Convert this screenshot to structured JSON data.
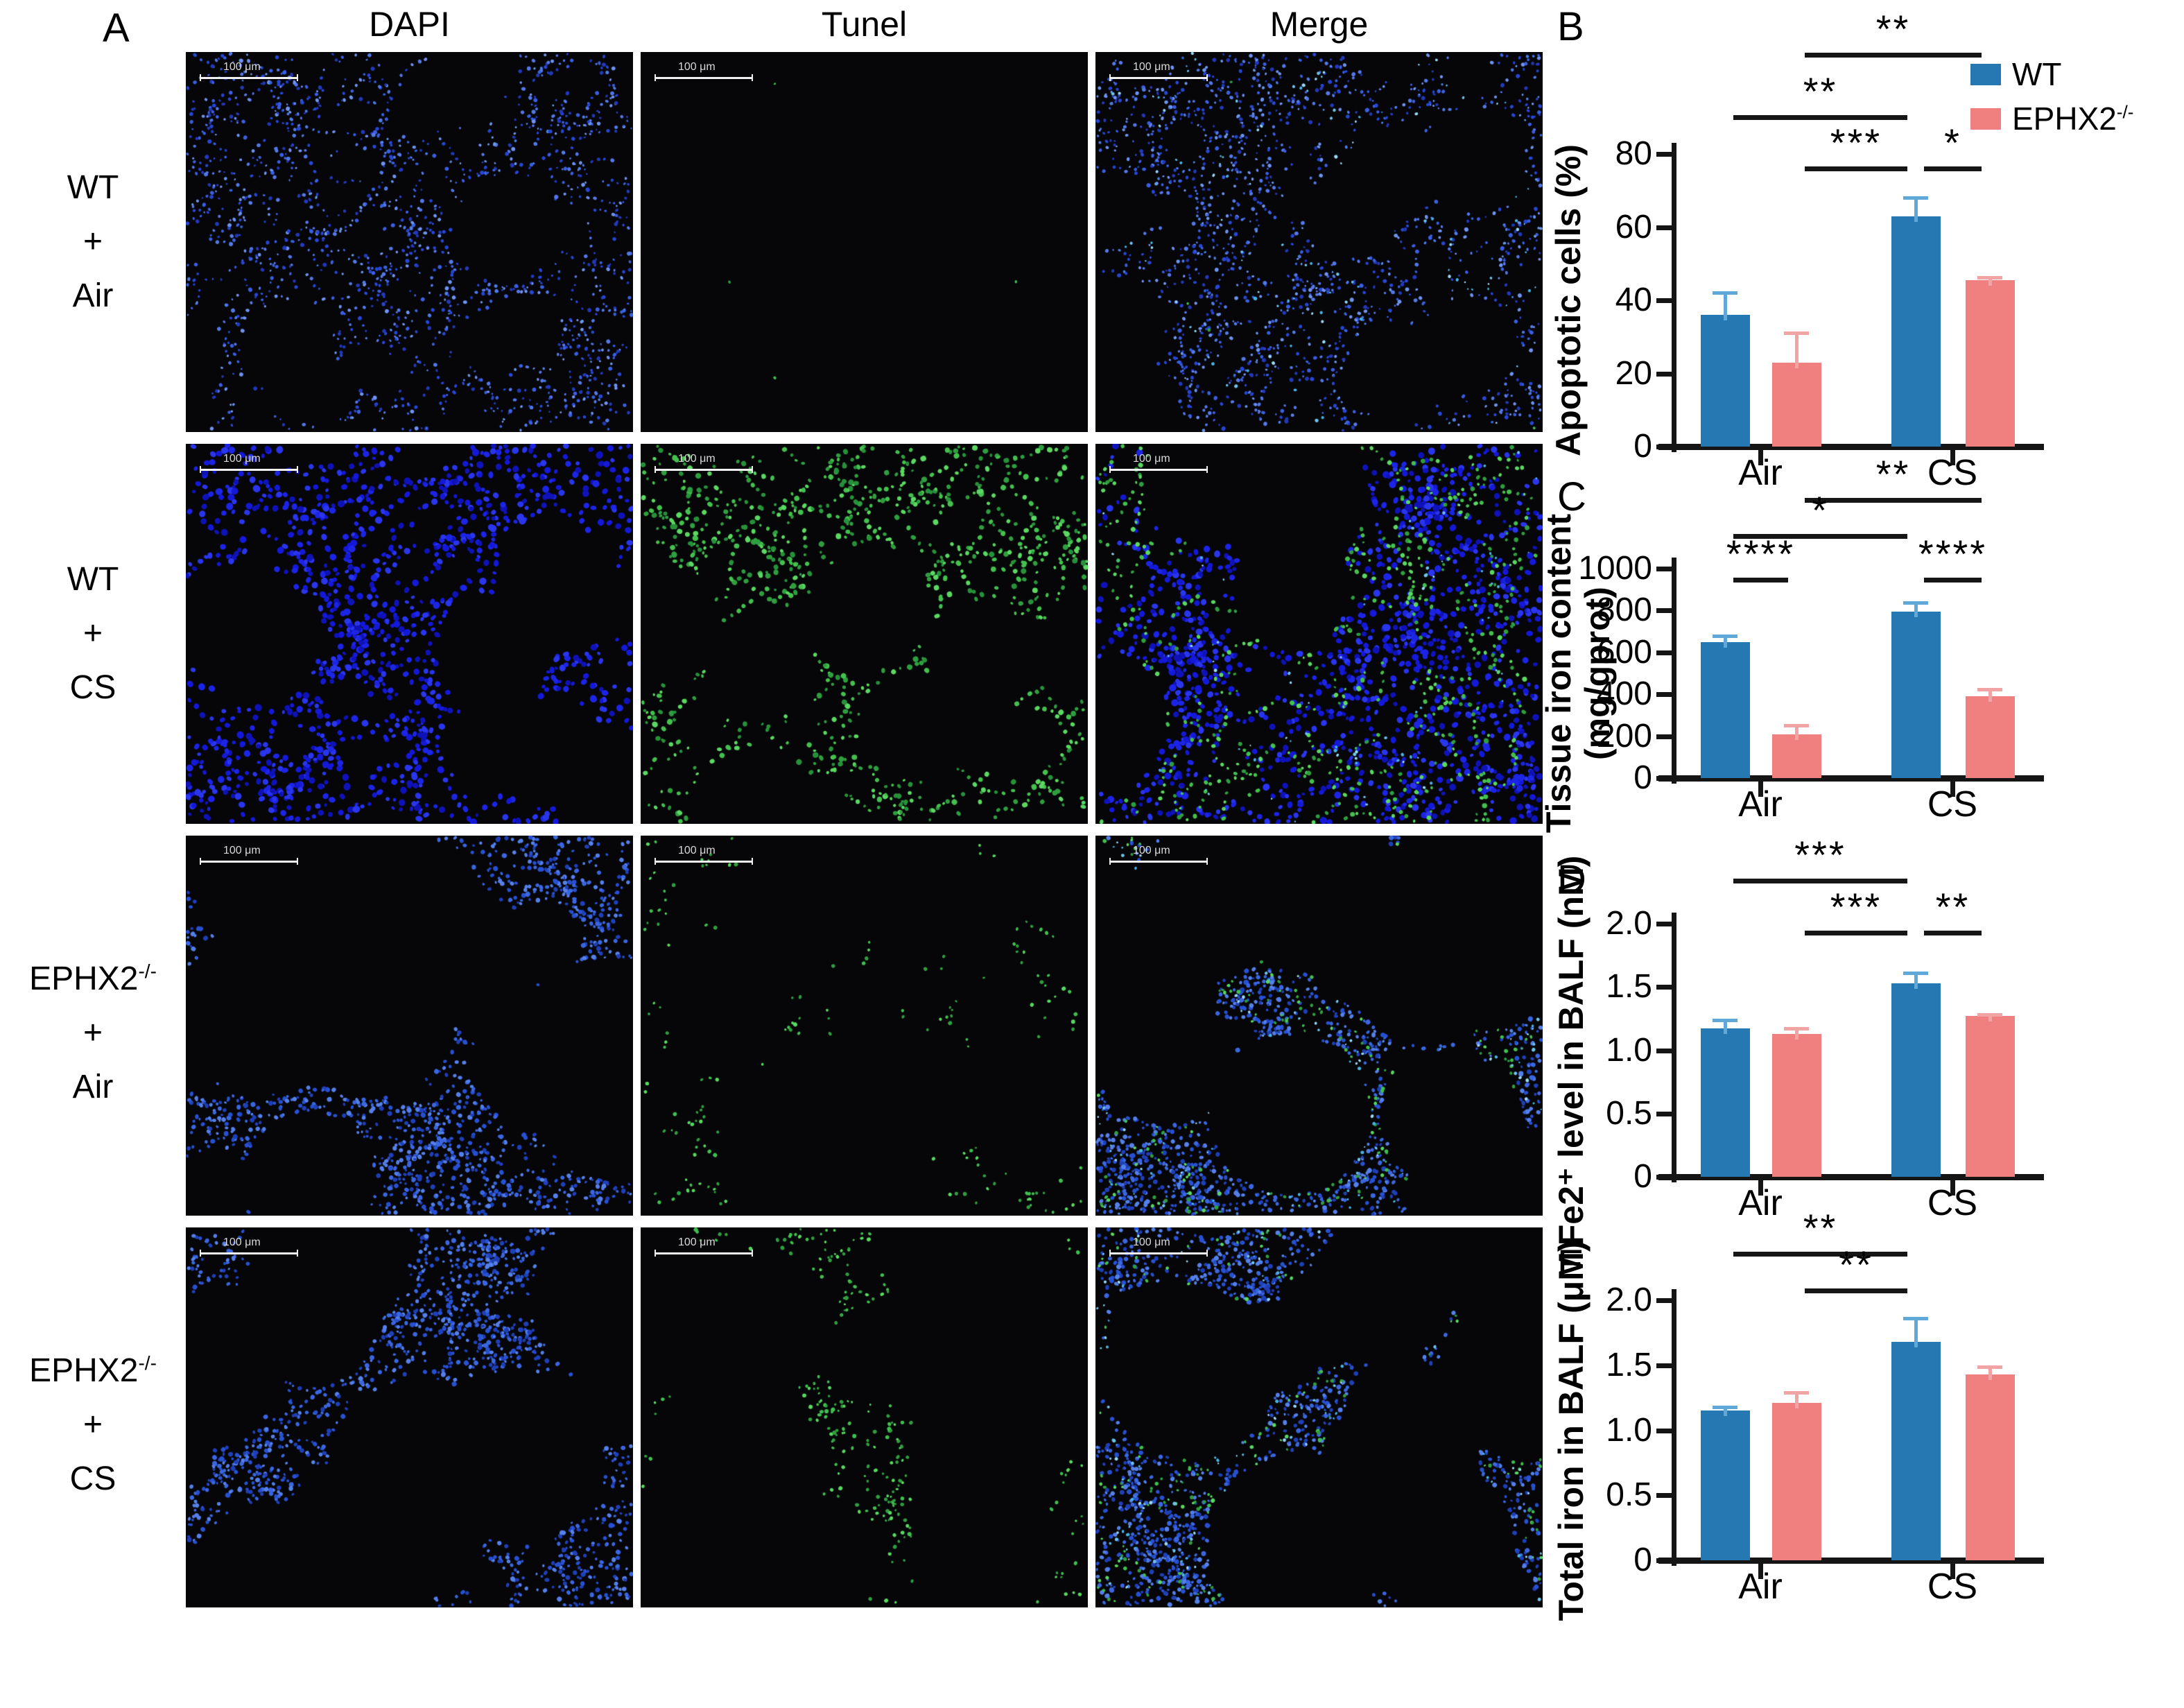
{
  "panel_a": {
    "label": "A",
    "column_headers": [
      "DAPI",
      "Tunel",
      "Merge"
    ],
    "row_labels": [
      {
        "genotype": "WT",
        "genotype_sup": "",
        "plus": "+",
        "condition": "Air"
      },
      {
        "genotype": "WT",
        "genotype_sup": "",
        "plus": "+",
        "condition": "CS"
      },
      {
        "genotype": "EPHX2",
        "genotype_sup": "-/-",
        "plus": "+",
        "condition": "Air"
      },
      {
        "genotype": "EPHX2",
        "genotype_sup": "-/-",
        "plus": "+",
        "condition": "CS"
      }
    ],
    "scale_bar_label": "100 μm",
    "micrographs": [
      {
        "row": 0,
        "col": 0,
        "stain": "DAPI",
        "group": "wt-air",
        "blue": "dense-fine",
        "green": "none"
      },
      {
        "row": 0,
        "col": 1,
        "stain": "Tunel",
        "group": "wt-air",
        "blue": "none",
        "green": "trace"
      },
      {
        "row": 0,
        "col": 2,
        "stain": "Merge",
        "group": "wt-air",
        "blue": "dense-fine",
        "green": "trace"
      },
      {
        "row": 1,
        "col": 0,
        "stain": "DAPI",
        "group": "wt-cs",
        "blue": "dense-bold",
        "green": "none"
      },
      {
        "row": 1,
        "col": 1,
        "stain": "Tunel",
        "group": "wt-cs",
        "blue": "none",
        "green": "dense"
      },
      {
        "row": 1,
        "col": 2,
        "stain": "Merge",
        "group": "wt-cs",
        "blue": "dense-bold",
        "green": "medium"
      },
      {
        "row": 2,
        "col": 0,
        "stain": "DAPI",
        "group": "ephx2-air",
        "blue": "medium",
        "green": "none"
      },
      {
        "row": 2,
        "col": 1,
        "stain": "Tunel",
        "group": "ephx2-air",
        "blue": "none",
        "green": "sparse"
      },
      {
        "row": 2,
        "col": 2,
        "stain": "Merge",
        "group": "ephx2-air",
        "blue": "medium",
        "green": "sparse"
      },
      {
        "row": 3,
        "col": 0,
        "stain": "DAPI",
        "group": "ephx2-cs",
        "blue": "medium",
        "green": "none"
      },
      {
        "row": 3,
        "col": 1,
        "stain": "Tunel",
        "group": "ephx2-cs",
        "blue": "none",
        "green": "sparse-medium"
      },
      {
        "row": 3,
        "col": 2,
        "stain": "Merge",
        "group": "ephx2-cs",
        "blue": "medium",
        "green": "sparse"
      }
    ]
  },
  "legend": {
    "items": [
      {
        "label": "WT",
        "sup": "",
        "color_key": "wt_bar"
      },
      {
        "label": "EPHX2",
        "sup": "-/-",
        "color_key": "ephx2_bar"
      }
    ]
  },
  "chart_data": [
    {
      "panel": "B",
      "type": "bar",
      "ylabel_lines": [
        "Apoptotic cells (%)"
      ],
      "xlabel": "",
      "categories": [
        "Air",
        "CS"
      ],
      "ytick_labels": [
        "0",
        "20",
        "40",
        "60",
        "80"
      ],
      "ytick_values": [
        0,
        20,
        40,
        60,
        80
      ],
      "ylim": [
        0,
        80
      ],
      "legend_position": "top-right",
      "series": [
        {
          "name": "WT",
          "color_key": "wt_bar",
          "error_color_key": "wt_error",
          "values": [
            36,
            63
          ],
          "errors": [
            6,
            5
          ]
        },
        {
          "name": "EPHX2-/-",
          "color_key": "ephx2_bar",
          "error_color_key": "ephx2_error",
          "values": [
            23,
            45.5
          ],
          "errors": [
            8,
            0.8
          ]
        }
      ],
      "significance": [
        {
          "bars": [
            1,
            3
          ],
          "label": "**",
          "row": 2
        },
        {
          "bars": [
            0,
            2
          ],
          "label": "**",
          "row": 1
        },
        {
          "bars": [
            1,
            2
          ],
          "label": "***",
          "row": 0
        },
        {
          "bars": [
            2,
            3
          ],
          "label": "*",
          "row": 0
        }
      ]
    },
    {
      "panel": "C",
      "type": "bar",
      "ylabel_lines": [
        "Tissue iron content",
        "(mg/gprot)"
      ],
      "xlabel": "",
      "categories": [
        "Air",
        "CS"
      ],
      "ytick_labels": [
        "0",
        "200",
        "400",
        "600",
        "800",
        "1000"
      ],
      "ytick_values": [
        0,
        200,
        400,
        600,
        800,
        1000
      ],
      "ylim": [
        0,
        1000
      ],
      "legend_position": "none",
      "series": [
        {
          "name": "WT",
          "color_key": "wt_bar",
          "error_color_key": "wt_error",
          "values": [
            650,
            795
          ],
          "errors": [
            28,
            42
          ]
        },
        {
          "name": "EPHX2-/-",
          "color_key": "ephx2_bar",
          "error_color_key": "ephx2_error",
          "values": [
            210,
            390
          ],
          "errors": [
            42,
            35
          ]
        }
      ],
      "significance": [
        {
          "bars": [
            1,
            3
          ],
          "label": "**",
          "row": 2
        },
        {
          "bars": [
            0,
            2
          ],
          "label": "*",
          "row": 1
        },
        {
          "bars": [
            0,
            1
          ],
          "label": "****",
          "row": 0
        },
        {
          "bars": [
            2,
            3
          ],
          "label": "****",
          "row": 0
        }
      ]
    },
    {
      "panel": "D",
      "type": "bar",
      "ylabel_lines": [
        "Fe2⁺ level in BALF (nM)"
      ],
      "xlabel": "",
      "categories": [
        "Air",
        "CS"
      ],
      "ytick_labels": [
        "0",
        "0.5",
        "1.0",
        "1.5",
        "2.0"
      ],
      "ytick_values": [
        0,
        0.5,
        1.0,
        1.5,
        2.0
      ],
      "ylim": [
        0,
        2
      ],
      "legend_position": "none",
      "series": [
        {
          "name": "WT",
          "color_key": "wt_bar",
          "error_color_key": "wt_error",
          "values": [
            1.17,
            1.53
          ],
          "errors": [
            0.07,
            0.08
          ]
        },
        {
          "name": "EPHX2-/-",
          "color_key": "ephx2_bar",
          "error_color_key": "ephx2_error",
          "values": [
            1.13,
            1.27
          ],
          "errors": [
            0.04,
            0.01
          ]
        }
      ],
      "significance": [
        {
          "bars": [
            0,
            2
          ],
          "label": "***",
          "row": 1
        },
        {
          "bars": [
            1,
            2
          ],
          "label": "***",
          "row": 0
        },
        {
          "bars": [
            2,
            3
          ],
          "label": "**",
          "row": 0
        }
      ]
    },
    {
      "panel": "E",
      "type": "bar",
      "ylabel_lines": [
        "Total iron in BALF (μM)"
      ],
      "xlabel": "",
      "categories": [
        "Air",
        "CS"
      ],
      "ytick_labels": [
        "0",
        "0.5",
        "1.0",
        "1.5",
        "2.0"
      ],
      "ytick_values": [
        0,
        0.5,
        1.0,
        1.5,
        2.0
      ],
      "ylim": [
        0,
        2
      ],
      "legend_position": "none",
      "series": [
        {
          "name": "WT",
          "color_key": "wt_bar",
          "error_color_key": "wt_error",
          "values": [
            1.15,
            1.68
          ],
          "errors": [
            0.03,
            0.18
          ]
        },
        {
          "name": "EPHX2-/-",
          "color_key": "ephx2_bar",
          "error_color_key": "ephx2_error",
          "values": [
            1.21,
            1.43
          ],
          "errors": [
            0.08,
            0.06
          ]
        }
      ],
      "significance": [
        {
          "bars": [
            0,
            2
          ],
          "label": "**",
          "row": 1
        },
        {
          "bars": [
            1,
            2
          ],
          "label": "**",
          "row": 0
        }
      ]
    }
  ],
  "colors": {
    "wt_bar": "#2578B2",
    "ephx2_bar": "#F08080",
    "wt_error": "#5FA8D8",
    "ephx2_error": "#F2A3A3",
    "axis": "#151515",
    "sig": "#161616",
    "micrograph_bg": "#060608",
    "scale_bar": "#f0f0f0",
    "scale_text": "#d9d9d9"
  }
}
